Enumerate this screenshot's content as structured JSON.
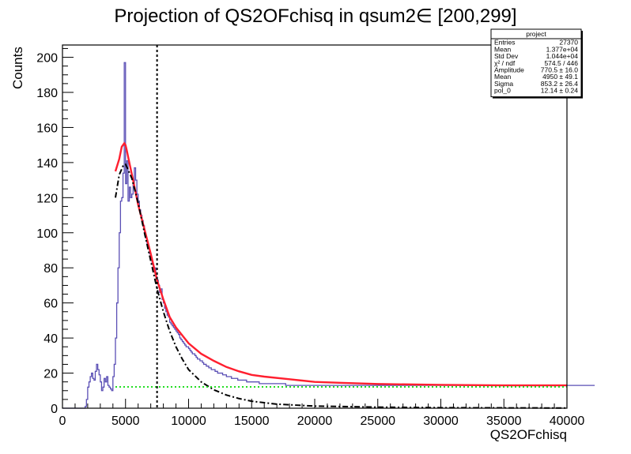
{
  "chart_data": {
    "type": "line",
    "title": "Projection of QS2OFchisq in qsum2∈ [200,299]",
    "xlabel": "QS2OFchisq",
    "ylabel": "Counts",
    "xlim": [
      0,
      40000
    ],
    "ylim": [
      0,
      207
    ],
    "x_ticks": [
      0,
      5000,
      10000,
      15000,
      20000,
      25000,
      30000,
      35000,
      40000
    ],
    "y_ticks": [
      0,
      20,
      40,
      60,
      80,
      100,
      120,
      140,
      160,
      180,
      200
    ],
    "grid": false,
    "histogram": {
      "name": "project",
      "bin_width": 100,
      "color": "#5a4fb5",
      "x_start": 0,
      "counts": [
        0,
        0,
        0,
        0,
        0,
        0,
        0,
        0,
        0,
        0,
        0,
        0,
        0,
        0,
        0,
        0,
        0,
        0,
        1,
        5,
        12,
        15,
        18,
        20,
        17,
        16,
        21,
        25,
        22,
        19,
        15,
        10,
        12,
        17,
        15,
        18,
        13,
        12,
        11,
        10,
        18,
        25,
        40,
        60,
        80,
        100,
        118,
        120,
        134,
        197,
        128,
        141,
        118,
        126,
        120,
        122,
        128,
        137,
        130,
        122,
        118,
        113,
        110,
        107,
        104,
        100,
        97,
        94,
        91,
        88,
        85,
        82,
        80,
        80,
        75,
        73,
        70,
        66,
        68,
        62,
        60,
        57,
        55,
        53,
        52,
        49,
        48,
        47,
        46,
        45,
        44,
        43,
        42,
        40,
        39,
        38,
        37,
        36,
        35,
        35,
        34,
        33,
        32,
        31,
        31,
        30,
        29,
        28,
        28,
        27,
        27,
        26,
        25,
        25,
        24,
        24,
        23,
        23,
        22,
        22,
        22,
        21,
        21,
        20,
        20,
        20,
        20,
        19,
        19,
        19,
        18,
        18,
        18,
        18,
        17,
        17,
        17,
        17,
        17,
        16,
        16,
        16,
        16,
        16,
        16,
        16,
        15,
        15,
        15,
        15,
        15,
        15,
        15,
        15,
        15,
        15,
        14,
        14,
        14,
        14,
        14,
        14,
        14,
        14,
        14,
        14,
        14,
        14,
        14,
        14,
        14,
        14,
        14,
        14,
        14,
        14,
        14,
        13,
        13,
        13,
        13,
        13,
        13,
        13,
        13,
        13,
        13,
        13,
        13,
        13,
        13,
        13,
        13,
        13,
        13,
        13,
        13,
        13,
        13,
        13,
        13,
        13,
        13,
        13,
        13,
        13,
        13,
        13,
        13,
        13,
        13,
        13,
        13,
        13,
        13,
        13,
        13,
        13,
        13,
        13,
        13,
        13,
        13,
        13,
        13,
        13,
        13,
        13,
        13,
        13,
        13,
        13,
        13,
        13,
        13,
        13,
        13,
        13,
        13,
        13,
        13,
        13,
        13,
        13,
        13,
        13,
        13,
        13,
        13,
        13,
        13,
        13,
        13,
        13,
        13,
        13,
        13,
        13,
        13,
        13,
        13,
        13,
        13,
        13,
        13,
        13,
        13,
        13,
        13,
        13,
        13,
        13,
        13,
        13,
        13,
        13,
        13,
        13,
        13,
        13,
        13,
        13,
        13,
        13,
        13,
        13,
        13,
        13,
        13,
        13,
        13,
        13,
        13,
        13,
        13,
        13,
        13,
        13,
        13,
        13,
        13,
        13,
        13,
        13,
        13,
        13,
        13,
        13,
        13,
        13,
        13,
        13,
        13,
        13,
        13,
        13,
        13,
        13,
        13,
        13,
        13,
        13,
        13,
        13,
        13,
        13,
        13,
        13,
        13,
        13,
        13,
        13,
        13,
        13,
        13,
        13,
        13,
        13,
        13,
        13,
        13,
        13,
        13,
        13,
        13,
        13,
        13,
        13,
        13,
        13,
        13,
        13,
        13,
        13,
        13,
        13,
        13,
        13,
        13,
        13,
        13,
        13,
        13,
        13,
        13,
        13,
        13,
        13,
        13,
        13,
        13,
        13,
        13,
        13,
        13,
        13,
        13,
        13,
        13,
        13,
        13,
        13,
        13,
        13,
        13,
        13,
        13,
        13,
        13,
        13,
        13,
        13,
        13,
        13,
        13,
        13,
        13,
        13,
        13,
        13,
        13,
        13,
        13,
        13,
        13,
        13,
        13,
        13,
        13,
        13,
        13,
        13,
        13,
        13,
        13,
        13,
        13,
        13,
        13,
        13,
        13,
        13
      ]
    },
    "fit_curves": [
      {
        "style": "solid",
        "color": "#ff1f2f",
        "x": [
          4200,
          4500,
          4700,
          4900,
          5000,
          5100,
          5300,
          5600,
          6000,
          6500,
          7000,
          7500,
          8000,
          8500,
          9000,
          10000,
          11000,
          12000,
          13000,
          14000,
          15000,
          16000,
          18000,
          20000,
          22000,
          25000,
          30000,
          35000,
          40000
        ],
        "y": [
          135,
          142,
          149,
          151,
          150,
          147,
          140,
          130,
          116,
          102,
          88,
          73,
          62,
          52,
          46,
          37,
          31,
          27,
          23.5,
          21,
          19,
          18,
          16.5,
          15,
          14.5,
          13.8,
          13.3,
          13,
          13
        ]
      },
      {
        "style": "dashdot",
        "color": "#000000",
        "x": [
          4200,
          4500,
          4800,
          5000,
          5200,
          5500,
          6000,
          6500,
          7000,
          7500,
          8000,
          8500,
          9000,
          9500,
          10000,
          11000,
          12000,
          13000,
          14000,
          15000,
          17000,
          20000,
          25000,
          30000,
          35000,
          40000
        ],
        "y": [
          120,
          133,
          138,
          139,
          136,
          131,
          117,
          100,
          84,
          68,
          55,
          44,
          35,
          28,
          22,
          15,
          10.5,
          7.5,
          5.5,
          4,
          2.3,
          1.2,
          0.6,
          0.3,
          0.2,
          0.1
        ]
      },
      {
        "style": "dotted",
        "color": "#22dd22",
        "x": [
          4200,
          40000
        ],
        "y": [
          12.14,
          12.14
        ]
      }
    ],
    "vertical_line": {
      "x": 7500,
      "style": "dotted",
      "color": "#000000"
    },
    "stats_box": {
      "title": "project",
      "rows": [
        {
          "label": "Entries",
          "value": "27370"
        },
        {
          "label": "Mean",
          "value": "1.377e+04"
        },
        {
          "label": "Std Dev",
          "value": "1.044e+04"
        },
        {
          "label": "χ² / ndf",
          "value": "574.5 / 446"
        },
        {
          "label": "Amplitude",
          "value": "770.5 ± 16.0"
        },
        {
          "label": "Mean",
          "value": "4950 ± 49.1"
        },
        {
          "label": "Sigma",
          "value": "853.2 ± 26.4"
        },
        {
          "label": "pol_0",
          "value": "12.14 ± 0.24"
        }
      ]
    }
  }
}
